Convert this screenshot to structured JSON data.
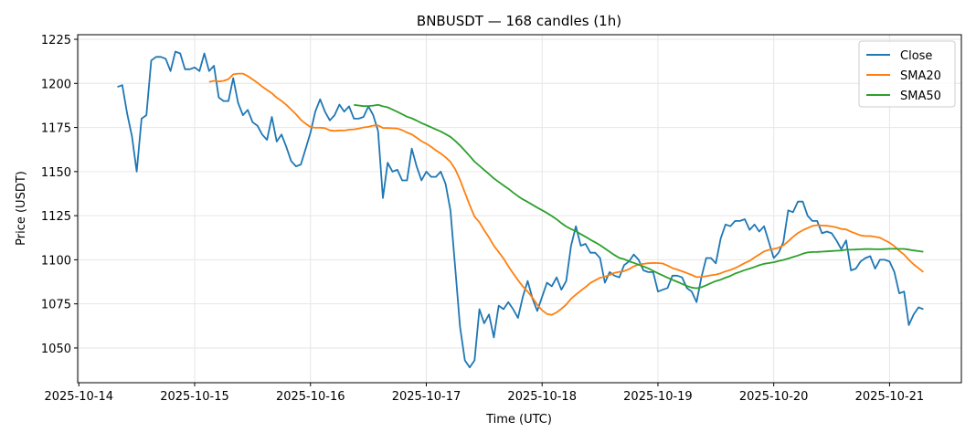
{
  "chart_data": {
    "type": "line",
    "title": "BNBUSDT — 168 candles (1h)",
    "xlabel": "Time (UTC)",
    "ylabel": "Price (USDT)",
    "x_start": "2025-10-14 08:00",
    "x_step_hours": 1,
    "xlim_days_from_2025_10_14": [
      -0.01,
      7.62
    ],
    "ylim": [
      1030.3,
      1227.6
    ],
    "x_ticks": [
      "2025-10-14",
      "2025-10-15",
      "2025-10-16",
      "2025-10-17",
      "2025-10-18",
      "2025-10-19",
      "2025-10-20",
      "2025-10-21"
    ],
    "y_ticks": [
      1050,
      1075,
      1100,
      1125,
      1150,
      1175,
      1200,
      1225
    ],
    "grid": true,
    "legend_placement": "top-right",
    "series": [
      {
        "name": "Close",
        "color": "#1f77b4",
        "values": [
          1198,
          1199,
          1183,
          1170,
          1150,
          1180,
          1182,
          1213,
          1215,
          1215,
          1214,
          1207,
          1218,
          1217,
          1208,
          1208,
          1209,
          1207,
          1217,
          1207,
          1210,
          1192,
          1190,
          1190,
          1203,
          1189,
          1182,
          1185,
          1178,
          1176,
          1171,
          1168,
          1181,
          1167,
          1171,
          1164,
          1156,
          1153,
          1154,
          1163,
          1172,
          1184,
          1191,
          1184,
          1179,
          1182,
          1188,
          1184,
          1187,
          1180,
          1180,
          1181,
          1187,
          1182,
          1173,
          1135,
          1155,
          1150,
          1151,
          1145,
          1145,
          1163,
          1153,
          1145,
          1150,
          1147,
          1147,
          1150,
          1143,
          1128,
          1095,
          1062,
          1043,
          1039,
          1043,
          1072,
          1064,
          1069,
          1056,
          1074,
          1072,
          1076,
          1072,
          1067,
          1079,
          1088,
          1078,
          1071,
          1079,
          1087,
          1085,
          1090,
          1083,
          1088,
          1108,
          1119,
          1108,
          1109,
          1104,
          1104,
          1101,
          1087,
          1093,
          1091,
          1090,
          1097,
          1099,
          1103,
          1100,
          1094,
          1093,
          1093,
          1082,
          1083,
          1084,
          1091,
          1091,
          1090,
          1084,
          1082,
          1076,
          1090,
          1101,
          1101,
          1098,
          1112,
          1120,
          1119,
          1122,
          1122,
          1123,
          1117,
          1120,
          1116,
          1119,
          1110,
          1101,
          1104,
          1110,
          1128,
          1127,
          1133,
          1133,
          1125,
          1122,
          1122,
          1115,
          1116,
          1115,
          1111,
          1106,
          1111,
          1094,
          1095,
          1099,
          1101,
          1102,
          1095,
          1100,
          1100,
          1099,
          1093,
          1081,
          1082,
          1063,
          1069,
          1073,
          1072
        ]
      },
      {
        "name": "SMA20",
        "color": "#ff7f0e",
        "window": 20
      },
      {
        "name": "SMA50",
        "color": "#2ca02c",
        "window": 50
      }
    ]
  }
}
